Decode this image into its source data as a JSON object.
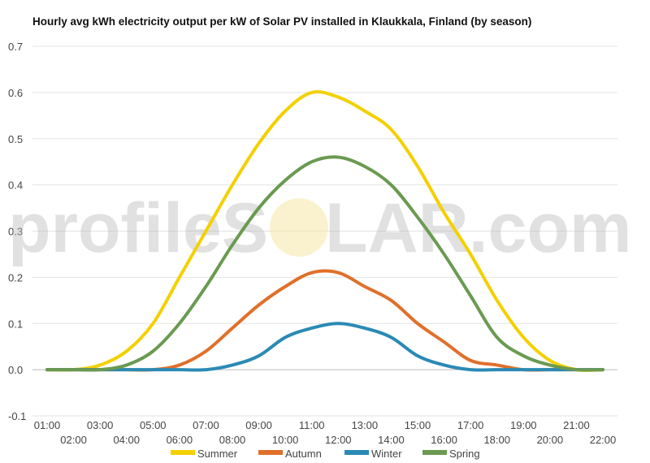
{
  "chart_data": {
    "type": "line",
    "title": "Hourly avg kWh electricity output per kW of Solar PV installed in Klaukkala, Finland (by season)",
    "xlabel": "",
    "ylabel": "",
    "ylim": [
      -0.1,
      0.7
    ],
    "yticks": [
      "-0.1",
      "0.0",
      "0.1",
      "0.2",
      "0.3",
      "0.4",
      "0.5",
      "0.6",
      "0.7"
    ],
    "categories": [
      "01:00",
      "02:00",
      "03:00",
      "04:00",
      "05:00",
      "06:00",
      "07:00",
      "08:00",
      "09:00",
      "10:00",
      "11:00",
      "12:00",
      "13:00",
      "14:00",
      "15:00",
      "16:00",
      "17:00",
      "18:00",
      "19:00",
      "20:00",
      "21:00",
      "22:00"
    ],
    "grid": true,
    "legend": "bottom",
    "series": [
      {
        "name": "Summer",
        "color": "#f4d000",
        "values": [
          0.0,
          0.0,
          0.01,
          0.04,
          0.1,
          0.2,
          0.3,
          0.4,
          0.49,
          0.56,
          0.6,
          0.59,
          0.56,
          0.52,
          0.44,
          0.34,
          0.25,
          0.15,
          0.07,
          0.02,
          0.0,
          0.0
        ]
      },
      {
        "name": "Autumn",
        "color": "#e0702a",
        "values": [
          0.0,
          0.0,
          0.0,
          0.0,
          0.0,
          0.01,
          0.04,
          0.09,
          0.14,
          0.18,
          0.21,
          0.21,
          0.18,
          0.15,
          0.1,
          0.06,
          0.02,
          0.01,
          0.0,
          0.0,
          0.0,
          0.0
        ]
      },
      {
        "name": "Winter",
        "color": "#2a8ab5",
        "values": [
          0.0,
          0.0,
          0.0,
          0.0,
          0.0,
          0.0,
          0.0,
          0.01,
          0.03,
          0.07,
          0.09,
          0.1,
          0.09,
          0.07,
          0.03,
          0.01,
          0.0,
          0.0,
          0.0,
          0.0,
          0.0,
          0.0
        ]
      },
      {
        "name": "Spring",
        "color": "#6a9a50",
        "values": [
          0.0,
          0.0,
          0.0,
          0.01,
          0.04,
          0.1,
          0.18,
          0.27,
          0.35,
          0.41,
          0.45,
          0.46,
          0.44,
          0.4,
          0.33,
          0.25,
          0.16,
          0.07,
          0.03,
          0.01,
          0.0,
          0.0
        ]
      }
    ]
  },
  "watermark": {
    "left": "profileS",
    "right": "LAR.com"
  }
}
